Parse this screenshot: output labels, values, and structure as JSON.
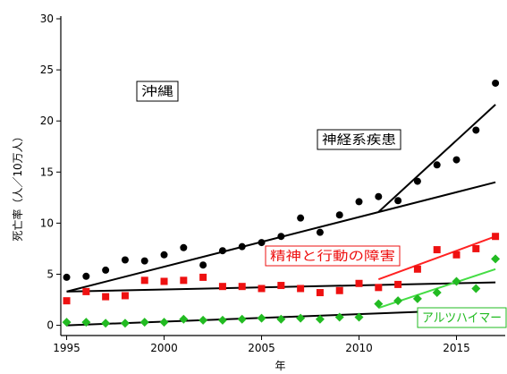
{
  "chart_data": {
    "type": "scatter",
    "title": "",
    "xlabel": "年",
    "ylabel": "死亡率（人／10万人）",
    "xlim": [
      1994.7,
      2017.5
    ],
    "ylim": [
      -1,
      30
    ],
    "x_ticks": [
      1995,
      2000,
      2005,
      2010,
      2015
    ],
    "y_ticks": [
      0,
      5,
      10,
      15,
      20,
      25,
      30
    ],
    "grid": false,
    "legend": "none",
    "region_label": "沖縄",
    "series": [
      {
        "name": "神経系疾患",
        "marker": "circle",
        "color": "#000000",
        "x": [
          1995,
          1996,
          1997,
          1998,
          1999,
          2000,
          2001,
          2002,
          2003,
          2004,
          2005,
          2006,
          2007,
          2008,
          2009,
          2010,
          2011,
          2012,
          2013,
          2014,
          2015,
          2016,
          2017
        ],
        "y": [
          4.7,
          4.8,
          5.4,
          6.4,
          6.3,
          6.9,
          7.6,
          5.9,
          7.3,
          7.7,
          8.1,
          8.7,
          10.5,
          9.1,
          10.8,
          12.1,
          12.6,
          12.2,
          14.1,
          15.7,
          16.2,
          19.1,
          23.7
        ]
      },
      {
        "name": "精神と行動の障害",
        "marker": "square",
        "color": "#ee1111",
        "x": [
          1995,
          1996,
          1997,
          1998,
          1999,
          2000,
          2001,
          2002,
          2003,
          2004,
          2005,
          2006,
          2007,
          2008,
          2009,
          2010,
          2011,
          2012,
          2013,
          2014,
          2015,
          2016,
          2017
        ],
        "y": [
          2.4,
          3.3,
          2.8,
          2.9,
          4.4,
          4.3,
          4.4,
          4.7,
          3.8,
          3.8,
          3.6,
          3.9,
          3.6,
          3.2,
          3.4,
          4.1,
          3.7,
          4.0,
          5.5,
          7.4,
          6.9,
          7.5,
          8.7
        ]
      },
      {
        "name": "アルツハイマー",
        "marker": "diamond",
        "color": "#22bb22",
        "x": [
          1995,
          1996,
          1997,
          1998,
          1999,
          2000,
          2001,
          2002,
          2003,
          2004,
          2005,
          2006,
          2007,
          2008,
          2009,
          2010,
          2011,
          2012,
          2013,
          2014,
          2015,
          2016,
          2017
        ],
        "y": [
          0.3,
          0.3,
          0.2,
          0.2,
          0.3,
          0.3,
          0.6,
          0.5,
          0.5,
          0.6,
          0.7,
          0.6,
          0.7,
          0.6,
          0.8,
          0.8,
          2.1,
          2.4,
          2.6,
          3.2,
          4.3,
          3.6,
          6.5
        ]
      }
    ],
    "trend_lines": [
      {
        "series": "神経系疾患",
        "x": [
          1995,
          2017
        ],
        "y": [
          3.3,
          14.0
        ],
        "color": "#000000"
      },
      {
        "series": "神経系疾患",
        "x": [
          2011,
          2017
        ],
        "y": [
          11.1,
          21.6
        ],
        "color": "#000000"
      },
      {
        "series": "精神と行動の障害",
        "x": [
          1995,
          2017
        ],
        "y": [
          3.3,
          4.2
        ],
        "color": "#000000"
      },
      {
        "series": "精神と行動の障害",
        "x": [
          2011,
          2017
        ],
        "y": [
          4.5,
          8.7
        ],
        "color": "#ff2222"
      },
      {
        "series": "アルツハイマー",
        "x": [
          1995,
          2017
        ],
        "y": [
          0.0,
          1.6
        ],
        "color": "#000000"
      },
      {
        "series": "アルツハイマー",
        "x": [
          2011,
          2017
        ],
        "y": [
          1.7,
          5.5
        ],
        "color": "#44dd44"
      }
    ],
    "annotations": [
      {
        "text": "沖縄",
        "color": "#000000"
      },
      {
        "text": "神経系疾患",
        "color": "#000000"
      },
      {
        "text": "精神と行動の障害",
        "color": "#ee1111"
      },
      {
        "text": "アルツハイマー",
        "color": "#22bb22"
      }
    ]
  }
}
